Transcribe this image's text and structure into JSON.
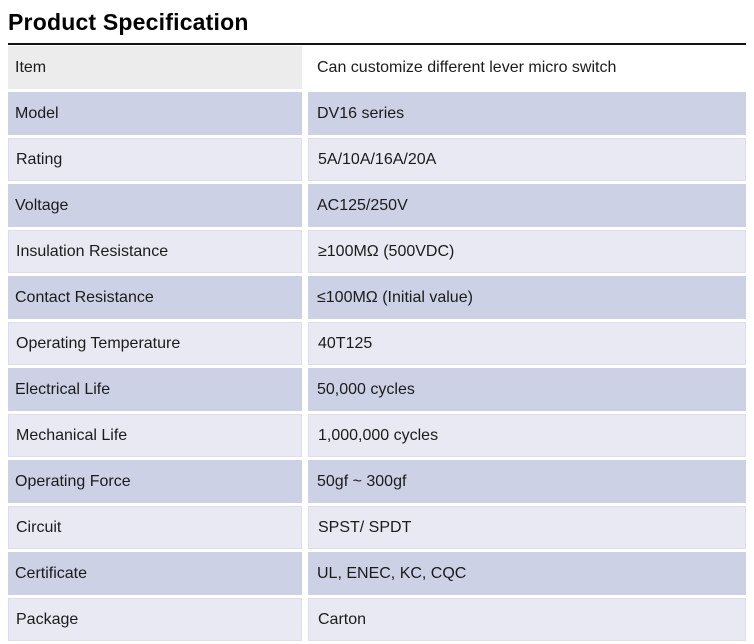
{
  "page_title": "Product Specification",
  "table": {
    "rows": [
      {
        "label": "Item",
        "value": "Can customize different lever micro switch"
      },
      {
        "label": "Model",
        "value": "DV16 series"
      },
      {
        "label": "Rating",
        "value": "5A/10A/16A/20A"
      },
      {
        "label": "Voltage",
        "value": "AC125/250V"
      },
      {
        "label": "Insulation Resistance",
        "value": "≥100MΩ (500VDC)"
      },
      {
        "label": "Contact Resistance",
        "value": "≤100MΩ (Initial value)"
      },
      {
        "label": "Operating Temperature",
        "value": "40T125"
      },
      {
        "label": "Electrical Life",
        "value": "50,000 cycles"
      },
      {
        "label": "Mechanical Life",
        "value": "1,000,000 cycles"
      },
      {
        "label": "Operating Force",
        "value": "50gf ~ 300gf"
      },
      {
        "label": "Circuit",
        "value": "SPST/ SPDT"
      },
      {
        "label": "Certificate",
        "value": "UL, ENEC, KC, CQC"
      },
      {
        "label": "Package",
        "value": "Carton"
      }
    ]
  },
  "colors": {
    "top_border": "#141414",
    "header_label_bg": "#ececec",
    "header_value_bg": "#ffffff",
    "row_dark_bg": "#ccd1e5",
    "row_light_bg": "#e8e9f3",
    "light_row_border": "#dcdeeb",
    "text": "#1b1b1b"
  }
}
